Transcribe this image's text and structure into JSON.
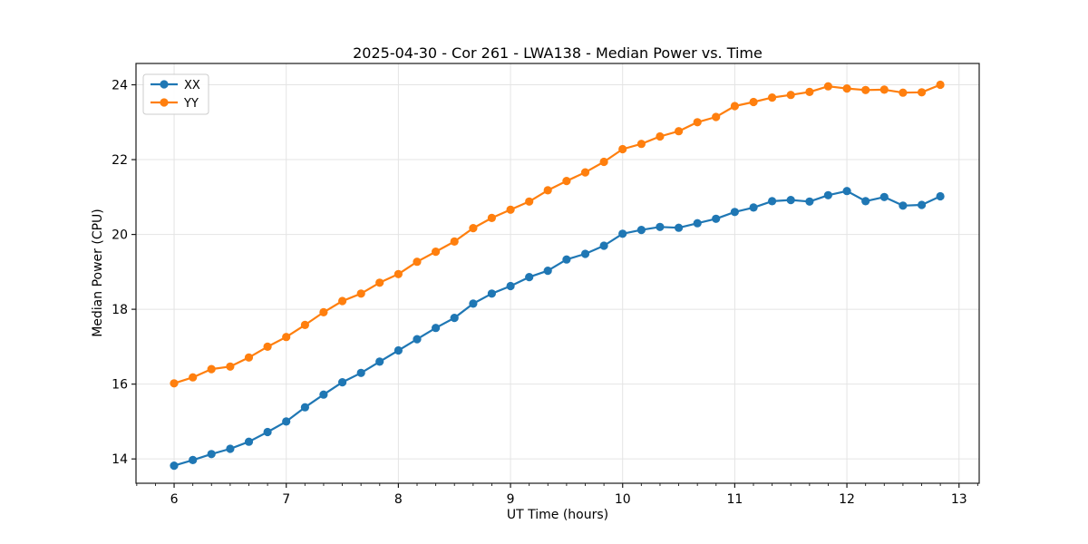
{
  "chart_data": {
    "type": "line",
    "title": "2025-04-30 - Cor 261 - LWA138 - Median Power vs. Time",
    "xlabel": "UT Time (hours)",
    "ylabel": "Median Power (CPU)",
    "xlim": [
      5.66,
      13.18
    ],
    "ylim": [
      13.35,
      24.57
    ],
    "xticks": [
      6,
      7,
      8,
      9,
      10,
      11,
      12,
      13
    ],
    "yticks": [
      14,
      16,
      18,
      20,
      22,
      24
    ],
    "x_minor_divisions": 6,
    "grid": true,
    "grid_color": "#e4e4e4",
    "spine_color": "#1a1a1a",
    "legend_position": "upper-left",
    "x": [
      6.0,
      6.167,
      6.333,
      6.5,
      6.667,
      6.833,
      7.0,
      7.167,
      7.333,
      7.5,
      7.667,
      7.833,
      8.0,
      8.167,
      8.333,
      8.5,
      8.667,
      8.833,
      9.0,
      9.167,
      9.333,
      9.5,
      9.667,
      9.833,
      10.0,
      10.167,
      10.333,
      10.5,
      10.667,
      10.833,
      11.0,
      11.167,
      11.333,
      11.5,
      11.667,
      11.833,
      12.0,
      12.167,
      12.333,
      12.5,
      12.667,
      12.833
    ],
    "series": [
      {
        "name": "XX",
        "color": "#1f77b4",
        "values": [
          13.82,
          13.97,
          14.13,
          14.27,
          14.46,
          14.72,
          15.0,
          15.38,
          15.72,
          16.05,
          16.3,
          16.6,
          16.9,
          17.2,
          17.5,
          17.77,
          18.15,
          18.42,
          18.62,
          18.86,
          19.03,
          19.33,
          19.48,
          19.7,
          20.02,
          20.12,
          20.2,
          20.18,
          20.3,
          20.42,
          20.6,
          20.72,
          20.89,
          20.92,
          20.88,
          21.05,
          21.16,
          20.89,
          21.0,
          20.77,
          20.79,
          21.02
        ]
      },
      {
        "name": "YY",
        "color": "#ff7f0e",
        "values": [
          16.02,
          16.18,
          16.4,
          16.47,
          16.71,
          17.0,
          17.26,
          17.58,
          17.92,
          18.22,
          18.42,
          18.71,
          18.94,
          19.27,
          19.54,
          19.81,
          20.17,
          20.44,
          20.66,
          20.88,
          21.18,
          21.43,
          21.66,
          21.94,
          22.28,
          22.42,
          22.62,
          22.76,
          23.0,
          23.14,
          23.43,
          23.54,
          23.66,
          23.73,
          23.81,
          23.96,
          23.9,
          23.86,
          23.87,
          23.79,
          23.8,
          24.0
        ]
      }
    ]
  }
}
